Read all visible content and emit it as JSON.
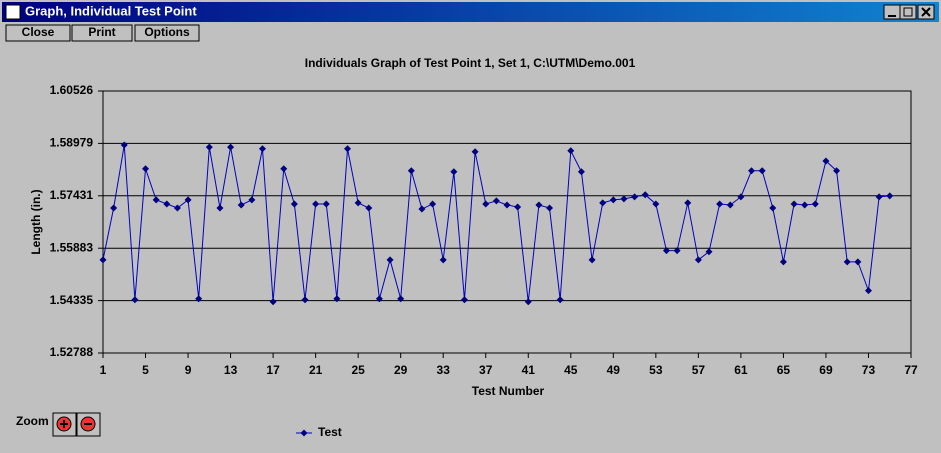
{
  "window": {
    "title": "Graph, Individual Test Point",
    "menu": [
      "Close",
      "Print",
      "Options"
    ],
    "zoom_label": "Zoom"
  },
  "chart_data": {
    "type": "line",
    "title": "Individuals Graph of Test Point 1, Set 1, C:\\UTM\\Demo.001",
    "x_label": "Test Number",
    "y_label": "Length (in.)",
    "x": [
      1,
      2,
      3,
      4,
      5,
      6,
      7,
      8,
      9,
      10,
      11,
      12,
      13,
      14,
      15,
      16,
      17,
      18,
      19,
      20,
      21,
      22,
      23,
      24,
      25,
      26,
      27,
      28,
      29,
      30,
      31,
      32,
      33,
      34,
      35,
      36,
      37,
      38,
      39,
      40,
      41,
      42,
      43,
      44,
      45,
      46,
      47,
      48,
      49,
      50,
      51,
      52,
      53,
      54,
      55,
      56,
      57,
      58,
      59,
      60,
      61,
      62,
      63,
      64,
      65,
      66,
      67,
      68,
      69,
      70,
      71,
      72,
      73,
      74,
      75
    ],
    "series": [
      {
        "name": "Test",
        "color": "#0000c0",
        "values": [
          1.5554,
          1.5707,
          1.5893,
          1.5436,
          1.5823,
          1.5731,
          1.5719,
          1.5707,
          1.5731,
          1.5439,
          1.5887,
          1.5707,
          1.5887,
          1.5716,
          1.5731,
          1.5882,
          1.543,
          1.5823,
          1.5719,
          1.5436,
          1.5719,
          1.5719,
          1.5439,
          1.5882,
          1.5722,
          1.5707,
          1.5439,
          1.5554,
          1.5439,
          1.5817,
          1.5704,
          1.5719,
          1.5554,
          1.5814,
          1.5436,
          1.5873,
          1.5719,
          1.5728,
          1.5716,
          1.571,
          1.543,
          1.5716,
          1.5707,
          1.5436,
          1.5876,
          1.5814,
          1.5554,
          1.5722,
          1.5731,
          1.5734,
          1.574,
          1.5746,
          1.5719,
          1.5581,
          1.5581,
          1.5722,
          1.5554,
          1.5578,
          1.5719,
          1.5716,
          1.574,
          1.5817,
          1.5817,
          1.5707,
          1.5548,
          1.5719,
          1.5716,
          1.5719,
          1.5846,
          1.5817,
          1.5548,
          1.5548,
          1.5463,
          1.574,
          1.5743
        ]
      }
    ],
    "xlim": [
      1,
      77
    ],
    "xticks": [
      1,
      5,
      9,
      13,
      17,
      21,
      25,
      29,
      33,
      37,
      41,
      45,
      49,
      53,
      57,
      61,
      65,
      69,
      73,
      77
    ],
    "ylim": [
      1.52788,
      1.60526
    ],
    "yticks": [
      1.52788,
      1.54335,
      1.55883,
      1.57431,
      1.58979,
      1.60526
    ],
    "grid": true,
    "legend": "bottom"
  }
}
